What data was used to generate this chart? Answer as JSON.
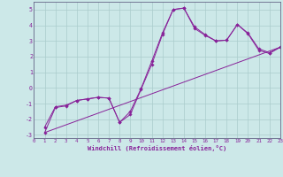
{
  "xlabel": "Windchill (Refroidissement éolien,°C)",
  "background_color": "#cce8e8",
  "grid_color": "#aacccc",
  "line_color": "#882299",
  "spine_color": "#666688",
  "xlim": [
    0,
    23
  ],
  "ylim": [
    -3.2,
    5.5
  ],
  "xticks": [
    0,
    1,
    2,
    3,
    4,
    5,
    6,
    7,
    8,
    9,
    10,
    11,
    12,
    13,
    14,
    15,
    16,
    17,
    18,
    19,
    20,
    21,
    22,
    23
  ],
  "yticks": [
    -3,
    -2,
    -1,
    0,
    1,
    2,
    3,
    4,
    5
  ],
  "series1_x": [
    1,
    2,
    3,
    4,
    5,
    6,
    7,
    8,
    9,
    10,
    11,
    12,
    13,
    14,
    15,
    16,
    17,
    18,
    19,
    20,
    21,
    22,
    23
  ],
  "series1_y": [
    -2.5,
    -1.2,
    -1.1,
    -0.8,
    -0.7,
    -0.6,
    -0.65,
    -2.2,
    -1.5,
    -0.05,
    1.7,
    3.5,
    5.0,
    5.1,
    3.9,
    3.4,
    3.0,
    3.05,
    4.05,
    3.5,
    2.5,
    2.25,
    2.6
  ],
  "series2_x": [
    1,
    2,
    3,
    4,
    5,
    6,
    7,
    8,
    9,
    10,
    11,
    12,
    13,
    14,
    15,
    16,
    17,
    18,
    19,
    20,
    21,
    22,
    23
  ],
  "series2_y": [
    -2.85,
    -1.25,
    -1.15,
    -0.8,
    -0.7,
    -0.6,
    -0.65,
    -2.2,
    -1.7,
    -0.1,
    1.5,
    3.4,
    5.0,
    5.1,
    3.8,
    3.35,
    3.0,
    3.05,
    4.05,
    3.45,
    2.4,
    2.2,
    2.6
  ],
  "series3_x": [
    1,
    23
  ],
  "series3_y": [
    -2.85,
    2.6
  ]
}
